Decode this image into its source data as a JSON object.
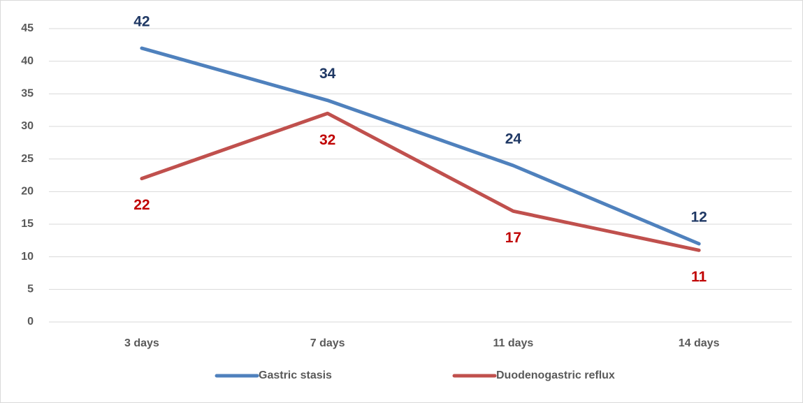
{
  "chart_data": {
    "type": "line",
    "categories": [
      "3 days",
      "7 days",
      "11 days",
      "14 days"
    ],
    "series": [
      {
        "name": "Gastric stasis",
        "color": "#4f81bd",
        "label_color": "#1f3864",
        "label_position": "above",
        "values": [
          42,
          34,
          24,
          12
        ]
      },
      {
        "name": "Duodenogastric reflux",
        "color": "#c0504d",
        "label_color": "#c00000",
        "label_position": "below",
        "values": [
          22,
          32,
          17,
          11
        ]
      }
    ],
    "ylim": [
      0,
      45
    ],
    "yticks": [
      0,
      5,
      10,
      15,
      20,
      25,
      30,
      35,
      40,
      45
    ],
    "grid": true,
    "legend": "bottom"
  }
}
